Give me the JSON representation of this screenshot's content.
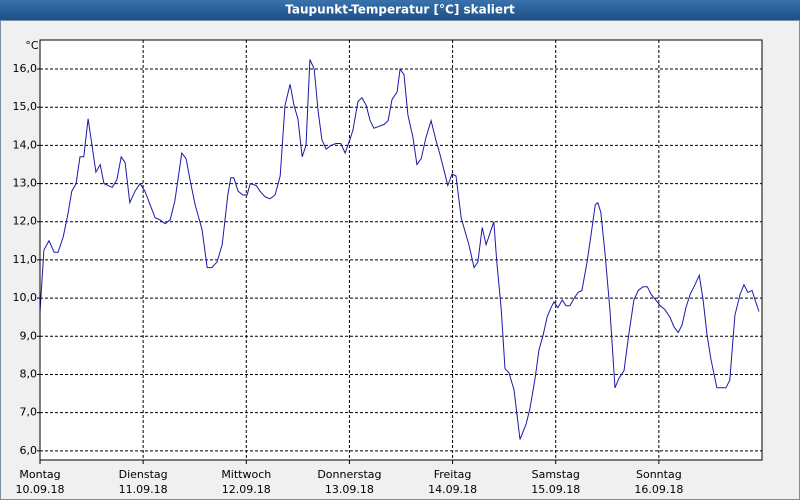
{
  "chart_data": {
    "type": "line",
    "title": "Taupunkt-Temperatur [°C] skaliert",
    "y_label": "°C",
    "xlim": [
      0,
      168
    ],
    "ylim": [
      5.76,
      16.76
    ],
    "grid": true,
    "yticks": [
      {
        "value": 6,
        "label": "6,0"
      },
      {
        "value": 7,
        "label": "7,0"
      },
      {
        "value": 8,
        "label": "8,0"
      },
      {
        "value": 9,
        "label": "9,0"
      },
      {
        "value": 10,
        "label": "10,0"
      },
      {
        "value": 11,
        "label": "11,0"
      },
      {
        "value": 12,
        "label": "12,0"
      },
      {
        "value": 13,
        "label": "13,0"
      },
      {
        "value": 14,
        "label": "14,0"
      },
      {
        "value": 15,
        "label": "15,0"
      },
      {
        "value": 16,
        "label": "16,0"
      }
    ],
    "xticks": [
      {
        "value": 0,
        "label": "Montag",
        "date": "10.09.18"
      },
      {
        "value": 24,
        "label": "Dienstag",
        "date": "11.09.18"
      },
      {
        "value": 48,
        "label": "Mittwoch",
        "date": "12.09.18"
      },
      {
        "value": 72,
        "label": "Donnerstag",
        "date": "13.09.18"
      },
      {
        "value": 96,
        "label": "Freitag",
        "date": "14.09.18"
      },
      {
        "value": 120,
        "label": "Samstag",
        "date": "15.09.18"
      },
      {
        "value": 144,
        "label": "Sonntag",
        "date": "16.09.18"
      }
    ],
    "series": [
      {
        "name": "Taupunkt",
        "color": "#1a1aa8",
        "x": [
          0,
          0.9,
          2.1,
          3.3,
          4.2,
          5.4,
          6.5,
          7.4,
          8.4,
          9.3,
          10.2,
          11.2,
          12.1,
          13.0,
          14.0,
          14.9,
          16.8,
          17.9,
          18.9,
          19.8,
          20.9,
          22.1,
          23.3,
          24.4,
          25.6,
          26.8,
          27.9,
          29.1,
          30.3,
          31.4,
          33.0,
          34.0,
          34.9,
          36.1,
          37.7,
          38.9,
          40.0,
          41.2,
          42.4,
          43.7,
          44.4,
          45.1,
          46.1,
          47.2,
          48.2,
          48.9,
          50.3,
          51.2,
          52.4,
          53.5,
          54.7,
          55.9,
          57.0,
          58.2,
          59.1,
          60.0,
          61.0,
          61.9,
          62.8,
          63.8,
          64.7,
          65.6,
          66.6,
          67.7,
          68.9,
          70.0,
          71.0,
          72.1,
          72.8,
          74.0,
          74.9,
          75.9,
          76.8,
          77.7,
          78.9,
          80.1,
          81.0,
          81.9,
          83.1,
          83.8,
          84.7,
          85.6,
          86.8,
          87.7,
          88.7,
          89.8,
          91.0,
          92.1,
          93.1,
          94.0,
          94.9,
          95.9,
          96.8,
          98.0,
          98.9,
          99.8,
          101.0,
          101.9,
          102.9,
          103.8,
          104.7,
          105.6,
          106.3,
          107.3,
          108.2,
          109.1,
          110.3,
          111.7,
          113.1,
          114.0,
          115.2,
          116.1,
          117.1,
          118.0,
          118.9,
          119.6,
          120.5,
          121.5,
          122.4,
          123.3,
          124.3,
          125.2,
          126.1,
          127.3,
          128.2,
          129.2,
          129.8,
          130.5,
          131.5,
          132.6,
          133.8,
          134.7,
          135.9,
          137.0,
          138.2,
          139.2,
          140.3,
          141.3,
          142.2,
          143.3,
          144.3,
          145.4,
          146.6,
          147.5,
          148.5,
          149.4,
          150.3,
          151.3,
          152.4,
          153.4,
          154.3,
          155.2,
          156.1,
          157.5,
          158.7,
          159.6,
          160.5,
          161.7,
          162.9,
          163.8,
          164.7,
          165.7,
          166.4,
          167.3
        ],
        "values": [
          9.64,
          11.26,
          11.5,
          11.2,
          11.2,
          11.6,
          12.2,
          12.8,
          13.0,
          13.7,
          13.7,
          14.7,
          14.0,
          13.3,
          13.5,
          13.0,
          12.9,
          13.1,
          13.7,
          13.55,
          12.5,
          12.8,
          13.0,
          12.8,
          12.45,
          12.1,
          12.05,
          11.95,
          12.05,
          12.55,
          13.8,
          13.65,
          13.1,
          12.45,
          11.8,
          10.8,
          10.8,
          10.95,
          11.4,
          12.7,
          13.15,
          13.15,
          12.8,
          12.7,
          12.7,
          13.0,
          12.95,
          12.8,
          12.65,
          12.6,
          12.7,
          13.2,
          15.05,
          15.6,
          15.05,
          14.7,
          13.7,
          14.0,
          16.25,
          16.0,
          14.9,
          14.15,
          13.9,
          14.0,
          14.05,
          14.05,
          13.8,
          14.15,
          14.4,
          15.15,
          15.25,
          15.05,
          14.65,
          14.45,
          14.5,
          14.55,
          14.65,
          15.2,
          15.4,
          16.0,
          15.85,
          14.8,
          14.2,
          13.5,
          13.65,
          14.2,
          14.65,
          14.15,
          13.75,
          13.35,
          12.95,
          13.25,
          13.2,
          12.1,
          11.75,
          11.4,
          10.8,
          10.95,
          11.85,
          11.4,
          11.7,
          12.0,
          10.95,
          9.75,
          8.15,
          8.05,
          7.6,
          6.3,
          6.7,
          7.1,
          7.9,
          8.65,
          9.05,
          9.5,
          9.75,
          9.9,
          9.75,
          9.95,
          9.8,
          9.8,
          10.0,
          10.15,
          10.2,
          10.95,
          11.65,
          12.45,
          12.5,
          12.25,
          11.15,
          9.7,
          7.65,
          7.9,
          8.1,
          9.05,
          9.95,
          10.2,
          10.3,
          10.3,
          10.1,
          9.95,
          9.8,
          9.7,
          9.5,
          9.25,
          9.1,
          9.3,
          9.75,
          10.1,
          10.35,
          10.6,
          9.95,
          9.05,
          8.4,
          7.65,
          7.65,
          7.65,
          7.85,
          9.55,
          10.1,
          10.35,
          10.15,
          10.2,
          9.95,
          9.65
        ]
      }
    ]
  }
}
